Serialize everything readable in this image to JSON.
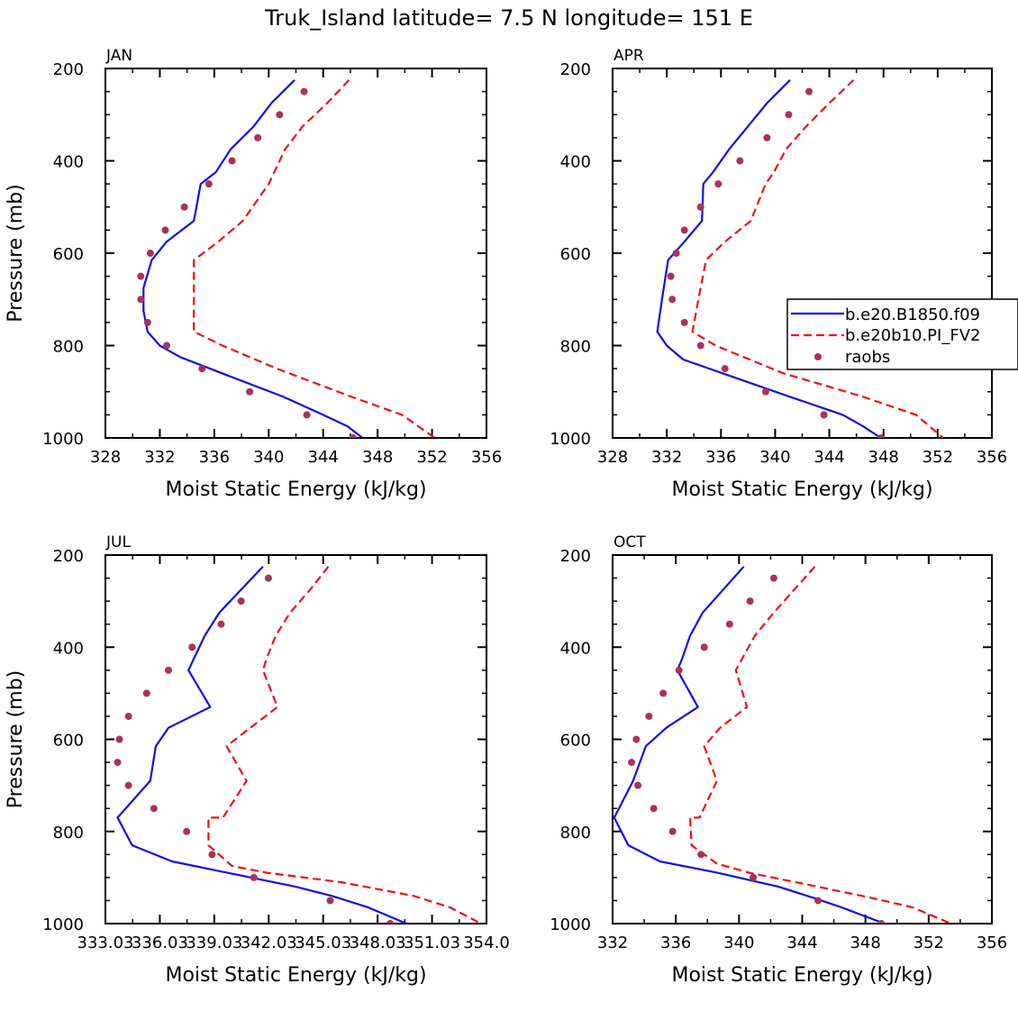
{
  "title": "Truk_Island  latitude= 7.5 N longitude= 151 E",
  "legend": {
    "entries": [
      "b.e20.B1850.f09",
      "b.e20b10.PI_FV2",
      "raobs"
    ]
  },
  "colors": {
    "model1": "#1010e0",
    "model2": "#ee1111",
    "obs": "#a8325a"
  },
  "chart_data": [
    {
      "type": "line",
      "panel": "JAN",
      "xlabel": "Moist Static Energy (kJ/kg)",
      "ylabel": "Pressure (mb)",
      "xlim": [
        328,
        356
      ],
      "ylim": [
        1000,
        200
      ],
      "xticks": [
        "328",
        "332",
        "336",
        "340",
        "344",
        "348",
        "352",
        "356"
      ],
      "yticks": [
        "200",
        "400",
        "600",
        "800",
        "1000"
      ],
      "series": [
        {
          "name": "b.e20.B1850.f09",
          "style": "solid",
          "points": [
            [
              341.9,
              225
            ],
            [
              340.2,
              275
            ],
            [
              338.9,
              325
            ],
            [
              337.2,
              375
            ],
            [
              336.1,
              425
            ],
            [
              335.0,
              450
            ],
            [
              334.5,
              530
            ],
            [
              332.5,
              575
            ],
            [
              331.4,
              615
            ],
            [
              330.8,
              675
            ],
            [
              330.8,
              725
            ],
            [
              331.1,
              770
            ],
            [
              332.0,
              800
            ],
            [
              333.5,
              825
            ],
            [
              337.0,
              865
            ],
            [
              341.0,
              910
            ],
            [
              344.0,
              950
            ],
            [
              345.8,
              975
            ],
            [
              346.9,
              1000
            ]
          ]
        },
        {
          "name": "b.e20b10.PI_FV2",
          "style": "dashed",
          "points": [
            [
              345.9,
              225
            ],
            [
              344.3,
              275
            ],
            [
              342.5,
              325
            ],
            [
              341.2,
              375
            ],
            [
              340.0,
              450
            ],
            [
              338.1,
              530
            ],
            [
              336.3,
              575
            ],
            [
              334.5,
              615
            ],
            [
              334.5,
              690
            ],
            [
              334.5,
              770
            ],
            [
              336.6,
              800
            ],
            [
              340.6,
              850
            ],
            [
              346.0,
              910
            ],
            [
              349.8,
              950
            ],
            [
              352.2,
              1000
            ]
          ]
        },
        {
          "name": "raobs",
          "style": "dots",
          "points": [
            [
              342.6,
              250
            ],
            [
              340.8,
              300
            ],
            [
              339.2,
              350
            ],
            [
              337.3,
              400
            ],
            [
              335.6,
              450
            ],
            [
              333.8,
              500
            ],
            [
              332.4,
              550
            ],
            [
              331.3,
              600
            ],
            [
              330.6,
              650
            ],
            [
              330.6,
              700
            ],
            [
              331.1,
              750
            ],
            [
              332.5,
              800
            ],
            [
              335.1,
              850
            ],
            [
              338.6,
              900
            ],
            [
              342.8,
              950
            ],
            [
              346.2,
              1000
            ]
          ]
        }
      ]
    },
    {
      "type": "line",
      "panel": "APR",
      "xlabel": "Moist Static Energy (kJ/kg)",
      "ylabel": "",
      "xlim": [
        328,
        356
      ],
      "ylim": [
        1000,
        200
      ],
      "xticks": [
        "328",
        "332",
        "336",
        "340",
        "344",
        "348",
        "352",
        "356"
      ],
      "yticks": [
        "200",
        "400",
        "600",
        "800",
        "1000"
      ],
      "series": [
        {
          "name": "b.e20.B1850.f09",
          "style": "solid",
          "points": [
            [
              341.1,
              225
            ],
            [
              339.4,
              275
            ],
            [
              338.0,
              325
            ],
            [
              336.6,
              375
            ],
            [
              335.4,
              425
            ],
            [
              334.7,
              450
            ],
            [
              334.6,
              530
            ],
            [
              333.3,
              575
            ],
            [
              332.1,
              615
            ],
            [
              331.7,
              690
            ],
            [
              331.3,
              770
            ],
            [
              332.0,
              800
            ],
            [
              333.2,
              830
            ],
            [
              336.6,
              865
            ],
            [
              341.0,
              910
            ],
            [
              345.0,
              950
            ],
            [
              346.5,
              975
            ],
            [
              347.8,
              1000
            ]
          ]
        },
        {
          "name": "b.e20b10.PI_FV2",
          "style": "dashed",
          "points": [
            [
              345.8,
              225
            ],
            [
              344.0,
              275
            ],
            [
              342.3,
              325
            ],
            [
              340.8,
              375
            ],
            [
              339.9,
              425
            ],
            [
              339.3,
              450
            ],
            [
              338.2,
              530
            ],
            [
              336.3,
              575
            ],
            [
              334.9,
              615
            ],
            [
              334.4,
              690
            ],
            [
              333.9,
              770
            ],
            [
              335.6,
              800
            ],
            [
              340.6,
              860
            ],
            [
              346.4,
              910
            ],
            [
              350.4,
              950
            ],
            [
              352.4,
              1000
            ]
          ]
        },
        {
          "name": "raobs",
          "style": "dots",
          "points": [
            [
              342.5,
              250
            ],
            [
              341.0,
              300
            ],
            [
              339.4,
              350
            ],
            [
              337.4,
              400
            ],
            [
              335.8,
              450
            ],
            [
              334.5,
              500
            ],
            [
              333.3,
              550
            ],
            [
              332.7,
              600
            ],
            [
              332.3,
              650
            ],
            [
              332.4,
              700
            ],
            [
              333.3,
              750
            ],
            [
              334.5,
              800
            ],
            [
              336.3,
              850
            ],
            [
              339.3,
              900
            ],
            [
              343.6,
              950
            ],
            [
              347.8,
              1000
            ]
          ]
        }
      ]
    },
    {
      "type": "line",
      "panel": "JUL",
      "xlabel": "Moist Static Energy (kJ/kg)",
      "ylabel": "Pressure (mb)",
      "xlim": [
        333.03,
        354.0
      ],
      "ylim": [
        1000,
        200
      ],
      "xticks": [
        "333.03",
        "336.03",
        "339.03",
        "342.03",
        "345.03",
        "348.03",
        "351.03",
        "354.0"
      ],
      "yticks": [
        "200",
        "400",
        "600",
        "800",
        "1000"
      ],
      "series": [
        {
          "name": "b.e20.B1850.f09",
          "style": "solid",
          "points": [
            [
              341.7,
              225
            ],
            [
              340.5,
              275
            ],
            [
              339.3,
              325
            ],
            [
              338.5,
              375
            ],
            [
              337.9,
              425
            ],
            [
              337.6,
              450
            ],
            [
              338.8,
              530
            ],
            [
              336.5,
              575
            ],
            [
              335.8,
              615
            ],
            [
              335.5,
              690
            ],
            [
              333.7,
              770
            ],
            [
              334.5,
              830
            ],
            [
              336.7,
              865
            ],
            [
              339.8,
              890
            ],
            [
              343.5,
              920
            ],
            [
              345.5,
              940
            ],
            [
              347.5,
              965
            ],
            [
              349.6,
              1000
            ]
          ]
        },
        {
          "name": "b.e20b10.PI_FV2",
          "style": "dashed",
          "points": [
            [
              345.3,
              225
            ],
            [
              344.3,
              275
            ],
            [
              343.2,
              325
            ],
            [
              342.4,
              375
            ],
            [
              341.9,
              425
            ],
            [
              341.7,
              450
            ],
            [
              342.5,
              530
            ],
            [
              341.0,
              575
            ],
            [
              339.7,
              615
            ],
            [
              340.8,
              690
            ],
            [
              339.5,
              770
            ],
            [
              338.7,
              770
            ],
            [
              338.7,
              830
            ],
            [
              340.0,
              875
            ],
            [
              342.0,
              890
            ],
            [
              346.0,
              910
            ],
            [
              350.0,
              940
            ],
            [
              352.0,
              965
            ],
            [
              353.7,
              1000
            ]
          ]
        },
        {
          "name": "raobs",
          "style": "dots",
          "points": [
            [
              342.0,
              250
            ],
            [
              340.5,
              300
            ],
            [
              339.4,
              350
            ],
            [
              337.8,
              400
            ],
            [
              336.5,
              450
            ],
            [
              335.3,
              500
            ],
            [
              334.3,
              550
            ],
            [
              333.8,
              600
            ],
            [
              333.7,
              650
            ],
            [
              334.3,
              700
            ],
            [
              335.7,
              750
            ],
            [
              337.5,
              800
            ],
            [
              338.9,
              850
            ],
            [
              341.2,
              900
            ],
            [
              345.4,
              950
            ],
            [
              348.7,
              1000
            ]
          ]
        }
      ]
    },
    {
      "type": "line",
      "panel": "OCT",
      "xlabel": "Moist Static Energy (kJ/kg)",
      "ylabel": "",
      "xlim": [
        332,
        356
      ],
      "ylim": [
        1000,
        200
      ],
      "xticks": [
        "332",
        "336",
        "340",
        "344",
        "348",
        "352",
        "356"
      ],
      "yticks": [
        "200",
        "400",
        "600",
        "800",
        "1000"
      ],
      "series": [
        {
          "name": "b.e20.B1850.f09",
          "style": "solid",
          "points": [
            [
              340.3,
              225
            ],
            [
              339.0,
              275
            ],
            [
              337.7,
              325
            ],
            [
              336.9,
              375
            ],
            [
              336.4,
              425
            ],
            [
              336.1,
              450
            ],
            [
              337.4,
              530
            ],
            [
              335.4,
              575
            ],
            [
              334.1,
              615
            ],
            [
              333.3,
              690
            ],
            [
              332.1,
              770
            ],
            [
              333.0,
              830
            ],
            [
              335.0,
              865
            ],
            [
              338.7,
              890
            ],
            [
              342.5,
              920
            ],
            [
              344.8,
              945
            ],
            [
              346.5,
              965
            ],
            [
              349.2,
              1000
            ]
          ]
        },
        {
          "name": "b.e20b10.PI_FV2",
          "style": "dashed",
          "points": [
            [
              344.8,
              225
            ],
            [
              343.5,
              275
            ],
            [
              342.2,
              325
            ],
            [
              341.0,
              375
            ],
            [
              340.2,
              425
            ],
            [
              339.8,
              450
            ],
            [
              340.5,
              530
            ],
            [
              338.8,
              575
            ],
            [
              337.8,
              615
            ],
            [
              338.6,
              690
            ],
            [
              337.5,
              770
            ],
            [
              336.9,
              770
            ],
            [
              337.0,
              830
            ],
            [
              338.6,
              870
            ],
            [
              340.7,
              890
            ],
            [
              345.0,
              920
            ],
            [
              348.5,
              945
            ],
            [
              351.0,
              965
            ],
            [
              353.4,
              1000
            ]
          ]
        },
        {
          "name": "raobs",
          "style": "dots",
          "points": [
            [
              342.2,
              250
            ],
            [
              340.7,
              300
            ],
            [
              339.4,
              350
            ],
            [
              337.8,
              400
            ],
            [
              336.2,
              450
            ],
            [
              335.2,
              500
            ],
            [
              334.3,
              550
            ],
            [
              333.5,
              600
            ],
            [
              333.2,
              650
            ],
            [
              333.6,
              700
            ],
            [
              334.6,
              750
            ],
            [
              335.8,
              800
            ],
            [
              337.6,
              850
            ],
            [
              340.9,
              900
            ],
            [
              345.0,
              950
            ],
            [
              349.0,
              1000
            ]
          ]
        }
      ]
    }
  ]
}
